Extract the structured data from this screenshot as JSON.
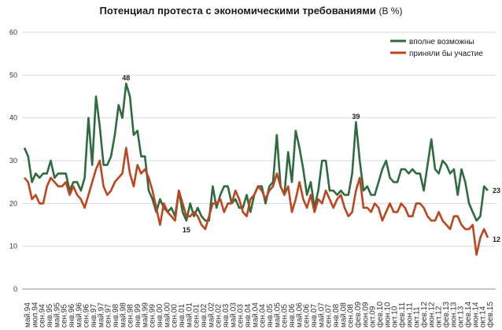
{
  "chart_data": {
    "type": "line",
    "title": "Потенциал протеста с экономическими требованиями",
    "title_unit": "(В %)",
    "ylim": [
      0,
      60
    ],
    "yticks": [
      "0",
      "10",
      "20",
      "30",
      "40",
      "50",
      "60"
    ],
    "grid": true,
    "legend_position": "top-right",
    "x_tick_labels": [
      "май.94",
      "июл.94",
      "сен.94",
      "янв.95",
      "май.95",
      "сен.95",
      "янв.96",
      "май.96",
      "сен.96",
      "янв.97",
      "май.97",
      "сен.97",
      "янв.98",
      "май.98",
      "сен.98",
      "янв.99",
      "май.99",
      "сен.99",
      "янв.00",
      "май.00",
      "сен.00",
      "янв.01",
      "май.01",
      "сен.01",
      "янв.02",
      "май.02",
      "сен.02",
      "янв.03",
      "май.03",
      "сен.03",
      "янв.04",
      "май.04",
      "сен.04",
      "янв.05",
      "май.05",
      "сен.05",
      "янв.06",
      "май.06",
      "сен.06",
      "янв.07",
      "май.07",
      "сен.07",
      "янв.08",
      "май.08",
      "сен.08",
      "фев.09",
      "июн.09",
      "окт.09",
      "фев.10",
      "июн.10",
      "окт.10",
      "фев.11",
      "июн.11",
      "окт.11",
      "фев.12",
      "июн.12",
      "окт.12",
      "фев.13",
      "июн.13",
      "окт.13",
      "фев.14",
      "июн.14",
      "окт.14",
      "фев.15"
    ],
    "series": [
      {
        "name": "вполне возможны",
        "color": "#2e6b3f",
        "values": [
          33,
          31,
          25,
          27,
          26,
          27,
          27,
          30,
          26,
          27,
          27,
          27,
          23,
          25,
          25,
          23,
          26,
          40,
          29,
          45,
          38,
          29,
          29,
          31,
          36,
          43,
          40,
          48,
          45,
          36,
          37,
          31,
          31,
          23,
          21,
          18,
          21,
          19,
          18,
          19,
          17,
          23,
          18,
          16,
          20,
          17,
          19,
          17,
          16,
          16,
          24,
          19,
          22,
          24,
          24,
          20,
          21,
          19,
          19,
          22,
          18,
          22,
          24,
          24,
          20,
          24,
          25,
          36,
          24,
          22,
          32,
          25,
          37,
          33,
          28,
          22,
          25,
          19,
          23,
          30,
          30,
          23,
          23,
          22,
          23,
          22,
          22,
          27,
          39,
          30,
          23,
          24,
          22,
          22,
          25,
          28,
          30,
          26,
          25,
          25,
          28,
          28,
          27,
          28,
          27,
          27,
          23,
          29,
          35,
          28,
          27,
          30,
          29,
          27,
          28,
          22,
          28,
          25,
          20,
          18,
          16,
          17,
          24,
          23
        ],
        "annotations": [
          {
            "x_index": 27,
            "text": "48"
          },
          {
            "x_index": 88,
            "text": "39"
          },
          {
            "x_index": 123,
            "text": "23"
          }
        ]
      },
      {
        "name": "приняли бы участие",
        "color": "#c0441e",
        "values": [
          26,
          25,
          21,
          22,
          20,
          20,
          24,
          26,
          25,
          24,
          24,
          25,
          22,
          24,
          22,
          21,
          19,
          22,
          25,
          28,
          30,
          24,
          22,
          23,
          25,
          26,
          27,
          33,
          27,
          24,
          29,
          27,
          28,
          26,
          23,
          19,
          15,
          20,
          18,
          17,
          16,
          23,
          20,
          17,
          17,
          18,
          17,
          15,
          14,
          17,
          20,
          20,
          21,
          18,
          20,
          20,
          23,
          21,
          18,
          17,
          21,
          22,
          24,
          23,
          21,
          23,
          24,
          27,
          24,
          22,
          24,
          18,
          21,
          25,
          21,
          19,
          22,
          18,
          21,
          20,
          23,
          21,
          19,
          21,
          22,
          19,
          17,
          18,
          23,
          26,
          19,
          19,
          18,
          20,
          19,
          16,
          18,
          20,
          18,
          18,
          20,
          19,
          17,
          17,
          20,
          20,
          19,
          17,
          16,
          16,
          18,
          16,
          15,
          14,
          17,
          17,
          15,
          14,
          14,
          15,
          8,
          12,
          14,
          12
        ],
        "annotations": [
          {
            "x_index": 123,
            "text": "12"
          }
        ]
      }
    ],
    "bottom_annotation": "15"
  }
}
